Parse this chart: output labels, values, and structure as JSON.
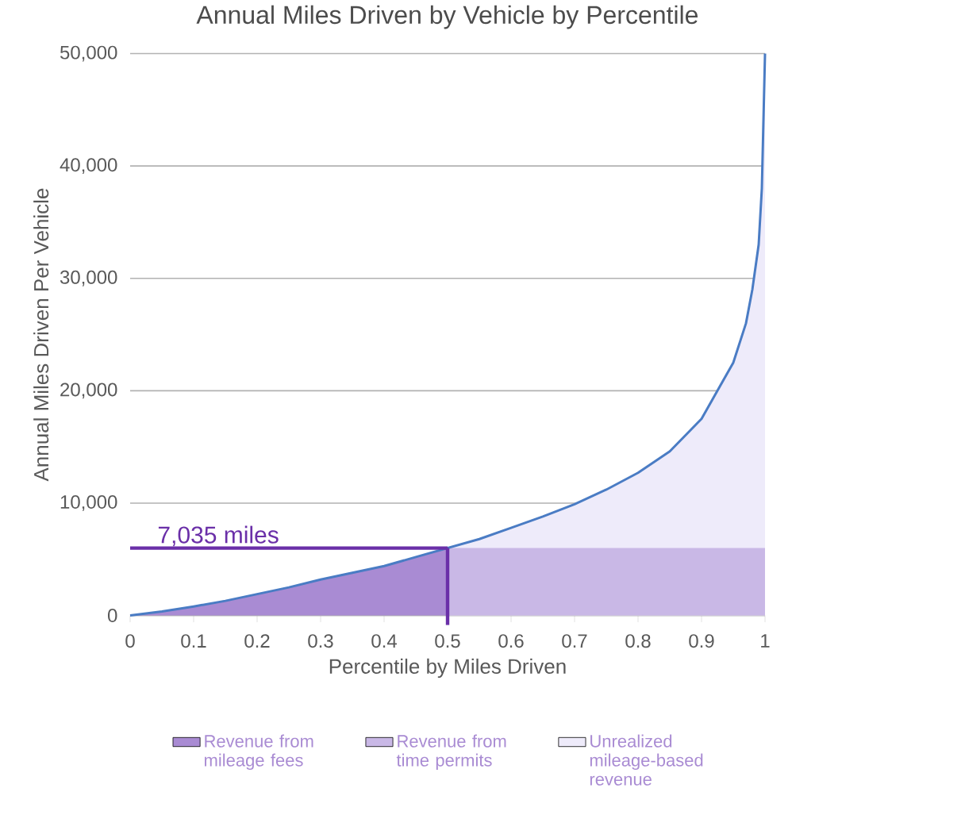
{
  "chart_data": {
    "type": "line",
    "title": "Annual Miles Driven by Vehicle by Percentile",
    "xlabel": "Percentile by Miles Driven",
    "ylabel": "Annual Miles Driven Per Vehicle",
    "xlim": [
      0,
      1
    ],
    "ylim": [
      0,
      50000
    ],
    "xticks": [
      0,
      0.1,
      0.2,
      0.3,
      0.4,
      0.5,
      0.6,
      0.7,
      0.8,
      0.9,
      1
    ],
    "yticks": [
      0,
      {
        "value": 10000,
        "label": "10,000"
      },
      {
        "value": 20000,
        "label": "20,000"
      },
      {
        "value": 30000,
        "label": "30,000"
      },
      {
        "value": 40000,
        "label": "40,000"
      },
      {
        "value": 50000,
        "label": "50,000"
      }
    ],
    "grid": "y",
    "legend": "bottom",
    "series": [
      {
        "name": "Revenue from mileage fees",
        "type": "area",
        "color": "#a98bd3",
        "x": [
          0,
          0.05,
          0.1,
          0.15,
          0.2,
          0.25,
          0.3,
          0.35,
          0.4,
          0.45,
          0.5
        ],
        "values": [
          0,
          350,
          800,
          1300,
          1900,
          2500,
          3200,
          3800,
          4400,
          5200,
          6000
        ]
      },
      {
        "name": "Revenue from time permits",
        "type": "area",
        "color": "#c9b8e6",
        "x": [
          0.5,
          1
        ],
        "values": [
          6000,
          6000
        ]
      },
      {
        "name": "Unrealized mileage-based revenue",
        "type": "area",
        "color": "#eeebfa",
        "x": [
          0.5,
          0.55,
          0.6,
          0.65,
          0.7,
          0.75,
          0.8,
          0.85,
          0.9,
          0.93,
          0.95,
          0.97,
          0.98,
          0.99,
          0.995,
          1
        ],
        "values": [
          6000,
          6800,
          7800,
          8800,
          9900,
          11200,
          12700,
          14600,
          17500,
          20500,
          22500,
          26000,
          29000,
          33000,
          38000,
          50000
        ]
      },
      {
        "color": "#4a7cc4",
        "x": [
          0,
          0.05,
          0.1,
          0.15,
          0.2,
          0.25,
          0.3,
          0.35,
          0.4,
          0.45,
          0.5,
          0.55,
          0.6,
          0.65,
          0.7,
          0.75,
          0.8,
          0.85,
          0.9,
          0.93,
          0.95,
          0.97,
          0.98,
          0.99,
          0.995,
          1
        ],
        "values": [
          0,
          350,
          800,
          1300,
          1900,
          2500,
          3200,
          3800,
          4400,
          5200,
          6000,
          6800,
          7800,
          8800,
          9900,
          11200,
          12700,
          14600,
          17500,
          20500,
          22500,
          26000,
          29000,
          33000,
          38000,
          50000
        ]
      }
    ],
    "ref_lines": [
      {
        "axis": "y",
        "value": 6000,
        "color": "#6a2fa8"
      },
      {
        "axis": "x",
        "value": 0.5,
        "color": "#6a2fa8"
      }
    ],
    "annotations": [
      "7,035 miles"
    ]
  }
}
